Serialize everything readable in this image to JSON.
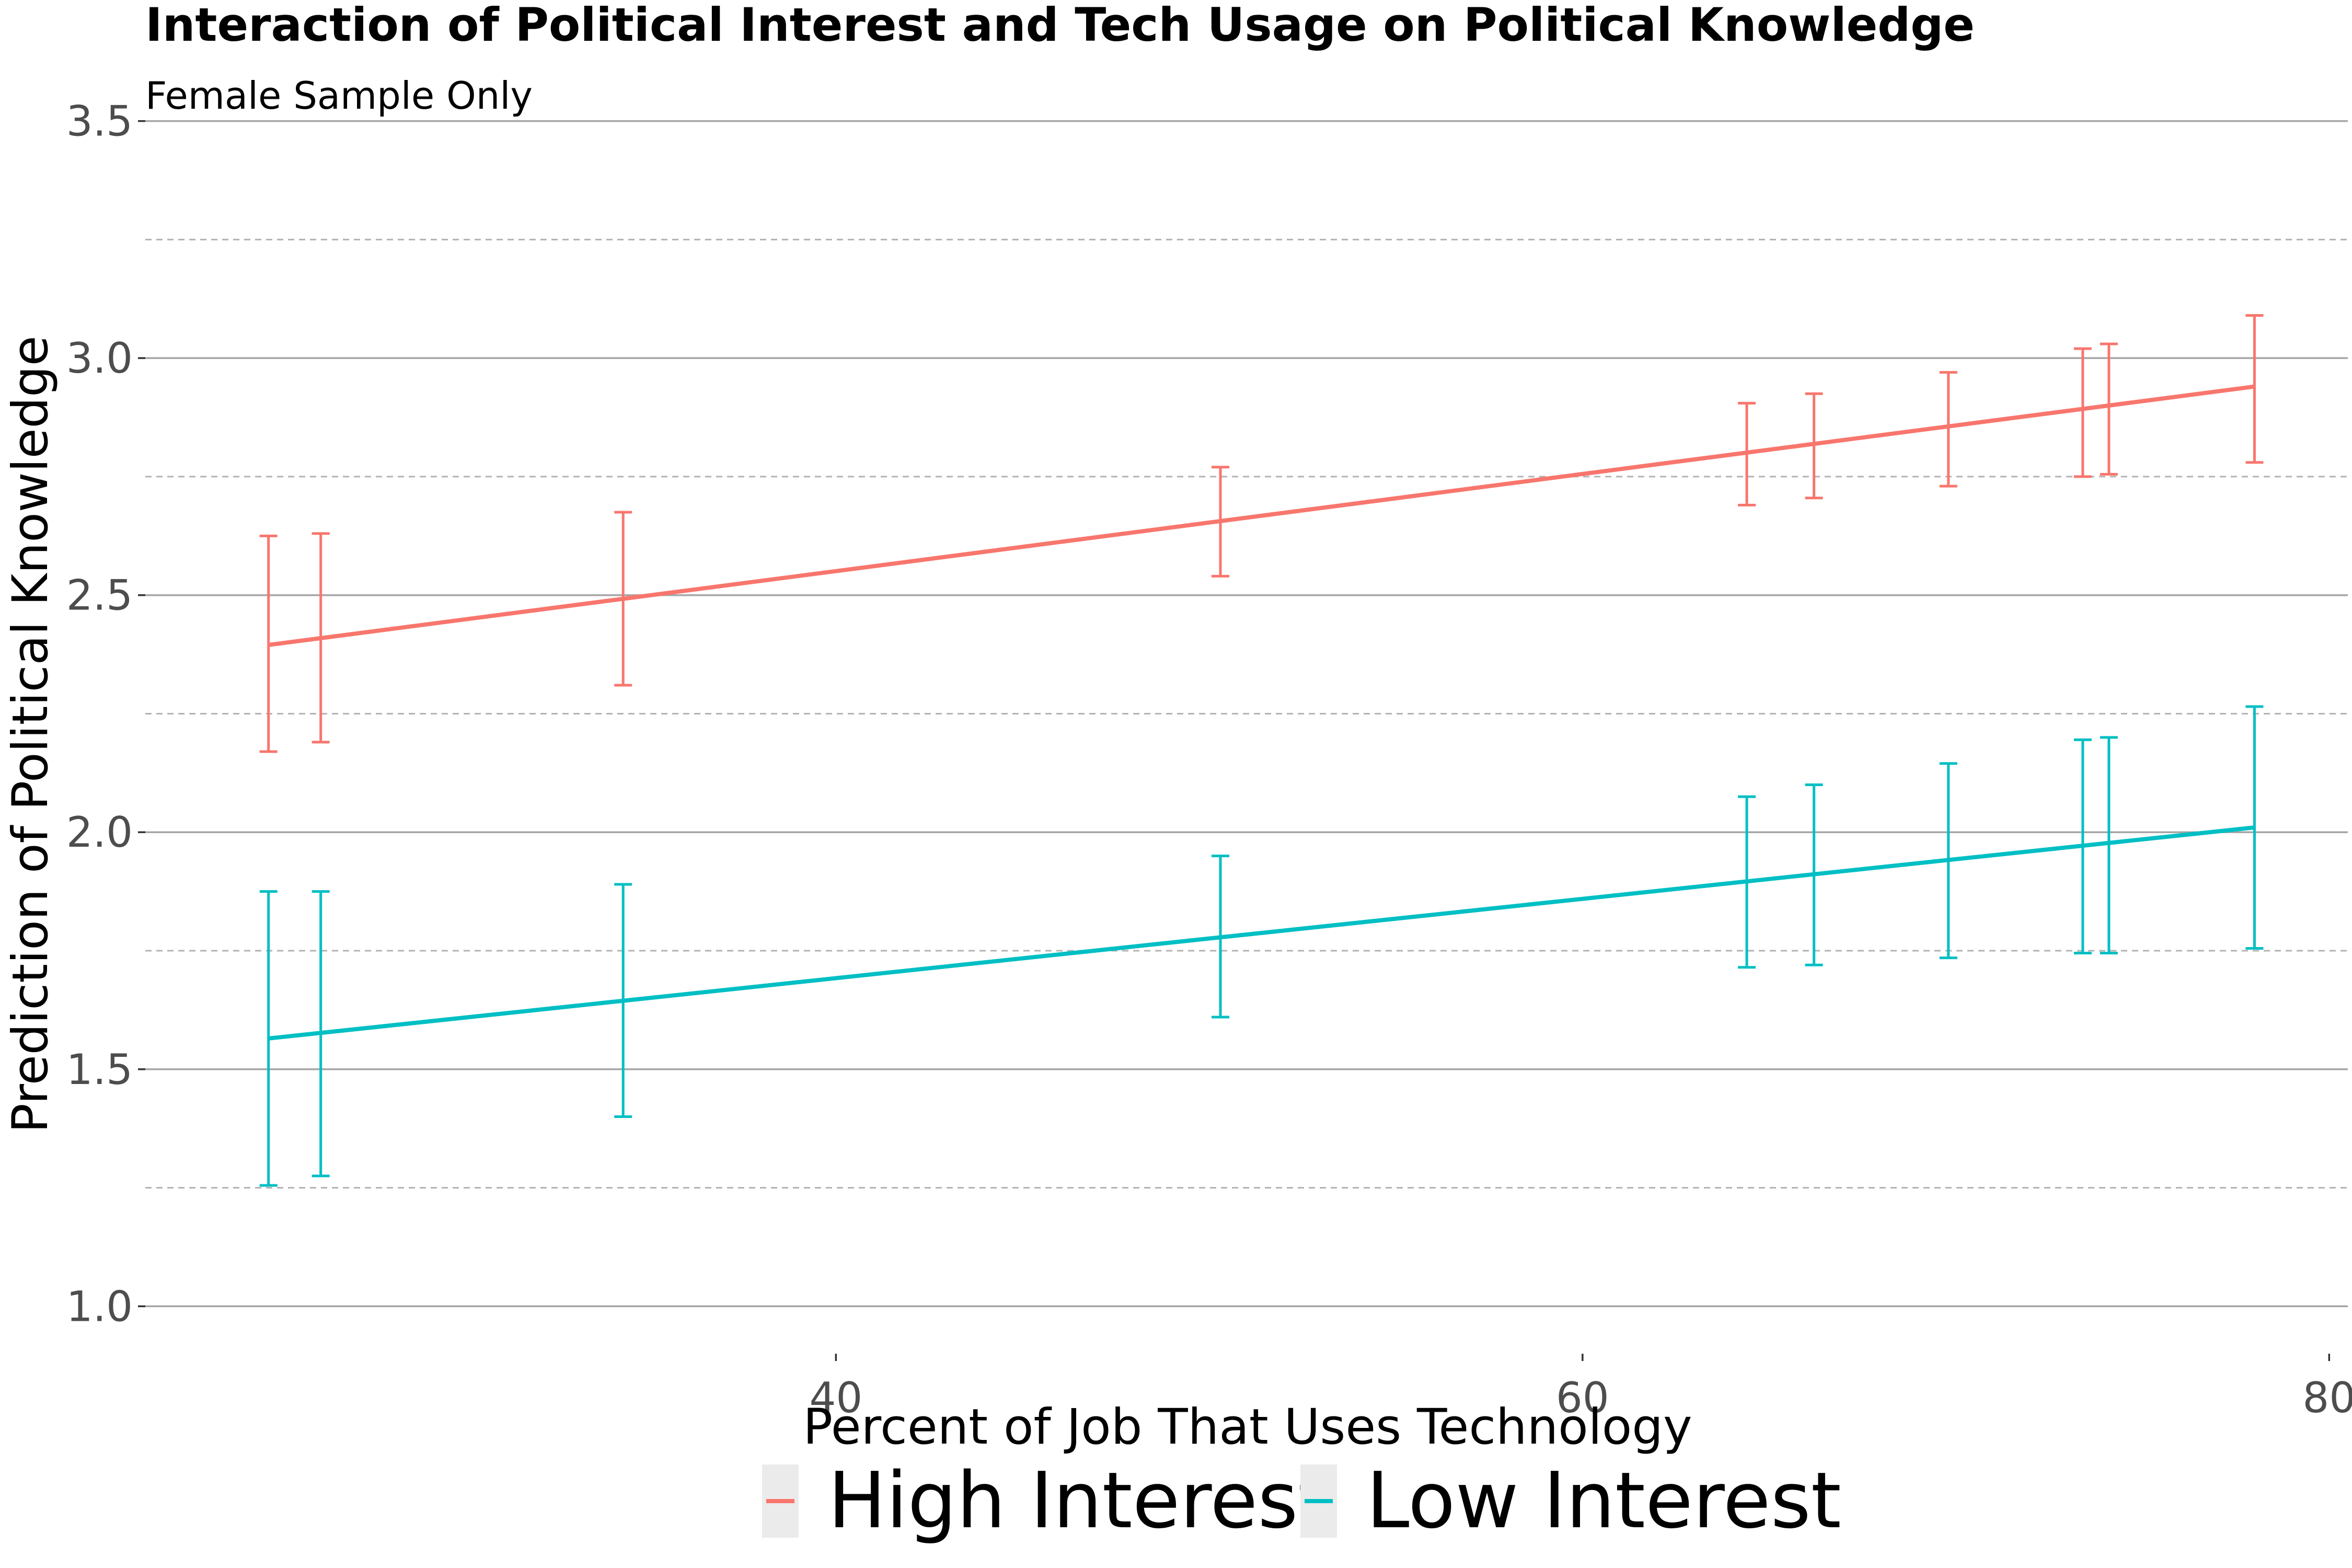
{
  "chart_data": {
    "type": "line",
    "title": "Interaction of Political Interest and Tech Usage on Political Knowledge",
    "subtitle": "Female Sample Only",
    "xlabel": "Percent of Job That Uses Technology",
    "ylabel": "Prediction of Political Knowledge",
    "xlim": [
      21.5,
      80.5
    ],
    "ylim": [
      0.9,
      3.59
    ],
    "x_ticks": [
      40,
      60,
      80
    ],
    "x_tick_labels": [
      "40",
      "60",
      "80"
    ],
    "y_ticks": [
      1.0,
      1.5,
      2.0,
      2.5,
      3.0,
      3.5
    ],
    "y_tick_labels": [
      "1.0",
      "1.5",
      "2.0",
      "2.5",
      "3.0",
      "3.5"
    ],
    "y_minor_ticks": [
      1.25,
      1.75,
      2.25,
      2.75,
      3.25
    ],
    "grid": "major solid, minor dashed (horizontal only)",
    "legend_position": "bottom",
    "series": [
      {
        "name": "High Interest",
        "color": "#F8766D",
        "line": {
          "x": [
            24.8,
            78.0
          ],
          "y": [
            2.395,
            2.94
          ]
        },
        "points": [
          {
            "x": 24.8,
            "y": 2.395,
            "lower": 2.17,
            "upper": 2.625
          },
          {
            "x": 26.2,
            "y": 2.41,
            "lower": 2.19,
            "upper": 2.63
          },
          {
            "x": 34.3,
            "y": 2.49,
            "lower": 2.31,
            "upper": 2.675
          },
          {
            "x": 50.3,
            "y": 2.655,
            "lower": 2.54,
            "upper": 2.77
          },
          {
            "x": 64.4,
            "y": 2.795,
            "lower": 2.69,
            "upper": 2.905
          },
          {
            "x": 66.2,
            "y": 2.815,
            "lower": 2.705,
            "upper": 2.925
          },
          {
            "x": 69.8,
            "y": 2.85,
            "lower": 2.73,
            "upper": 2.97
          },
          {
            "x": 73.4,
            "y": 2.885,
            "lower": 2.75,
            "upper": 3.02
          },
          {
            "x": 74.1,
            "y": 2.895,
            "lower": 2.755,
            "upper": 3.03
          },
          {
            "x": 78.0,
            "y": 2.94,
            "lower": 2.78,
            "upper": 3.09
          }
        ]
      },
      {
        "name": "Low Interest",
        "color": "#00BFC4",
        "line": {
          "x": [
            24.8,
            78.0
          ],
          "y": [
            1.565,
            2.01
          ]
        },
        "points": [
          {
            "x": 24.8,
            "y": 1.565,
            "lower": 1.255,
            "upper": 1.875
          },
          {
            "x": 26.2,
            "y": 1.575,
            "lower": 1.275,
            "upper": 1.875
          },
          {
            "x": 34.3,
            "y": 1.645,
            "lower": 1.4,
            "upper": 1.89
          },
          {
            "x": 50.3,
            "y": 1.78,
            "lower": 1.61,
            "upper": 1.95
          },
          {
            "x": 64.4,
            "y": 1.895,
            "lower": 1.715,
            "upper": 2.075
          },
          {
            "x": 66.2,
            "y": 1.91,
            "lower": 1.72,
            "upper": 2.1
          },
          {
            "x": 69.8,
            "y": 1.94,
            "lower": 1.735,
            "upper": 2.145
          },
          {
            "x": 73.4,
            "y": 1.97,
            "lower": 1.745,
            "upper": 2.195
          },
          {
            "x": 74.1,
            "y": 1.975,
            "lower": 1.745,
            "upper": 2.2
          },
          {
            "x": 78.0,
            "y": 2.01,
            "lower": 1.755,
            "upper": 2.265
          }
        ]
      }
    ]
  }
}
